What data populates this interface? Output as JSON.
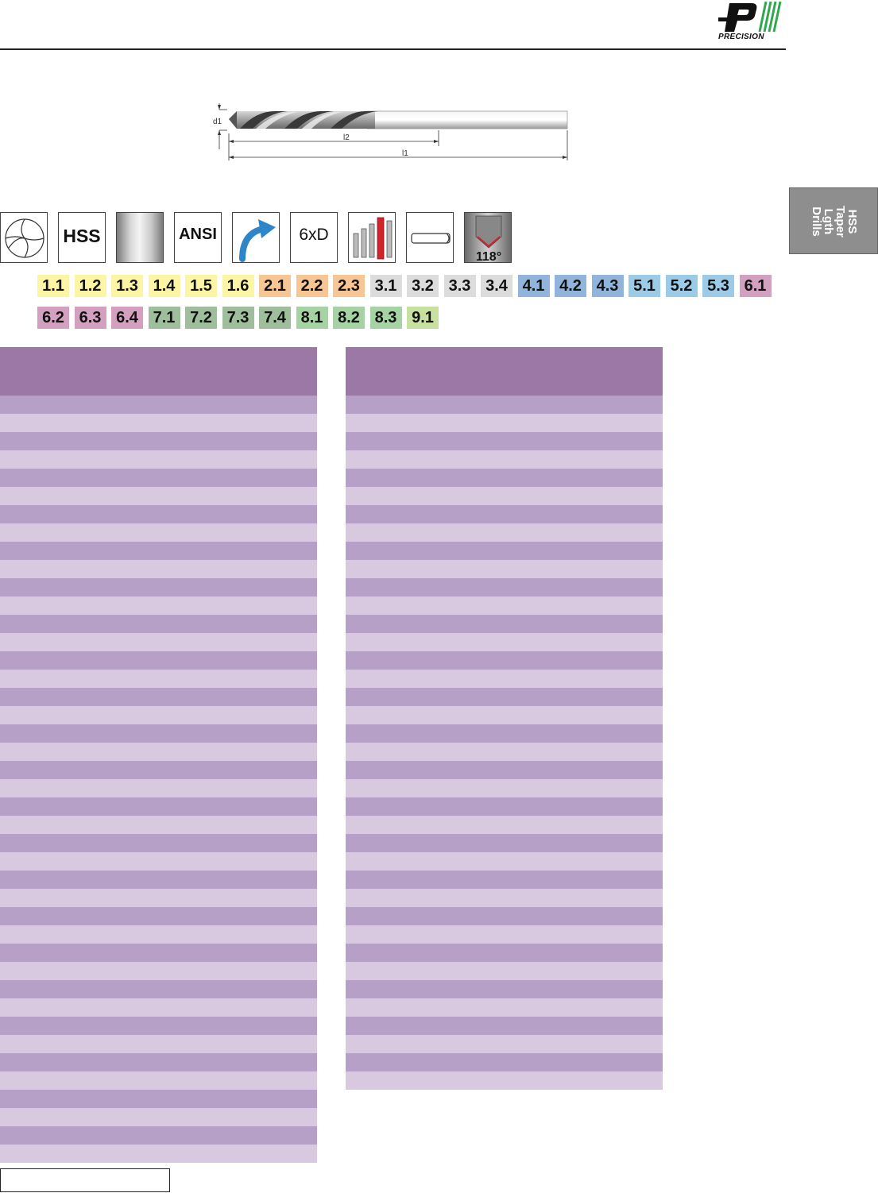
{
  "logo": {
    "text": "PRECISION"
  },
  "drill_diagram": {
    "label_d1": "d1",
    "label_l2": "l2",
    "label_l1": "l1"
  },
  "icons": [
    {
      "name": "flute-profile-icon",
      "label": ""
    },
    {
      "name": "hss-material-icon",
      "label": "HSS"
    },
    {
      "name": "bright-finish-icon",
      "label": ""
    },
    {
      "name": "ansi-standard-icon",
      "label": "ANSI"
    },
    {
      "name": "right-hand-cut-icon",
      "label": ""
    },
    {
      "name": "depth-6xd-icon",
      "label": "6xD"
    },
    {
      "name": "drill-length-series-icon",
      "label": ""
    },
    {
      "name": "straight-shank-icon",
      "label": ""
    },
    {
      "name": "point-angle-icon",
      "label": "118°"
    }
  ],
  "materials_row1": [
    {
      "code": "1.1",
      "color": "#fdf5a6"
    },
    {
      "code": "1.2",
      "color": "#fdf5a6"
    },
    {
      "code": "1.3",
      "color": "#fdf5a6"
    },
    {
      "code": "1.4",
      "color": "#fdf5a6"
    },
    {
      "code": "1.5",
      "color": "#fdf5a6"
    },
    {
      "code": "1.6",
      "color": "#fdf5a6"
    },
    {
      "code": "2.1",
      "color": "#f8c594"
    },
    {
      "code": "2.2",
      "color": "#f8c594"
    },
    {
      "code": "2.3",
      "color": "#f8c594"
    },
    {
      "code": "3.1",
      "color": "#dcdcdc"
    },
    {
      "code": "3.2",
      "color": "#dcdcdc"
    },
    {
      "code": "3.3",
      "color": "#dcdcdc"
    },
    {
      "code": "3.4",
      "color": "#dcdcdc"
    },
    {
      "code": "4.1",
      "color": "#92b4dc"
    },
    {
      "code": "4.2",
      "color": "#92b4dc"
    },
    {
      "code": "4.3",
      "color": "#92b4dc"
    },
    {
      "code": "5.1",
      "color": "#9ccbe8"
    },
    {
      "code": "5.2",
      "color": "#9ccbe8"
    },
    {
      "code": "5.3",
      "color": "#9ccbe8"
    },
    {
      "code": "6.1",
      "color": "#d3a0bf"
    }
  ],
  "materials_row2": [
    {
      "code": "6.2",
      "color": "#d3a0bf"
    },
    {
      "code": "6.3",
      "color": "#d3a0bf"
    },
    {
      "code": "6.4",
      "color": "#d3a0bf"
    },
    {
      "code": "7.1",
      "color": "#9fbf9c"
    },
    {
      "code": "7.2",
      "color": "#9fbf9c"
    },
    {
      "code": "7.3",
      "color": "#9fbf9c"
    },
    {
      "code": "7.4",
      "color": "#9fbf9c"
    },
    {
      "code": "8.1",
      "color": "#a6d3a4"
    },
    {
      "code": "8.2",
      "color": "#a6d3a4"
    },
    {
      "code": "8.3",
      "color": "#a6d3a4"
    },
    {
      "code": "9.1",
      "color": "#c8e0a0"
    }
  ],
  "tables": {
    "left_rows": 42,
    "right_rows": 38
  },
  "side_tab": {
    "line1": "HSS",
    "line2": "Taper",
    "line3": "Lgth",
    "line4": "Drills"
  },
  "colors": {
    "header_purple": "#9c78a6",
    "row_dark": "#b7a0c8",
    "row_light": "#d8c8e0"
  }
}
